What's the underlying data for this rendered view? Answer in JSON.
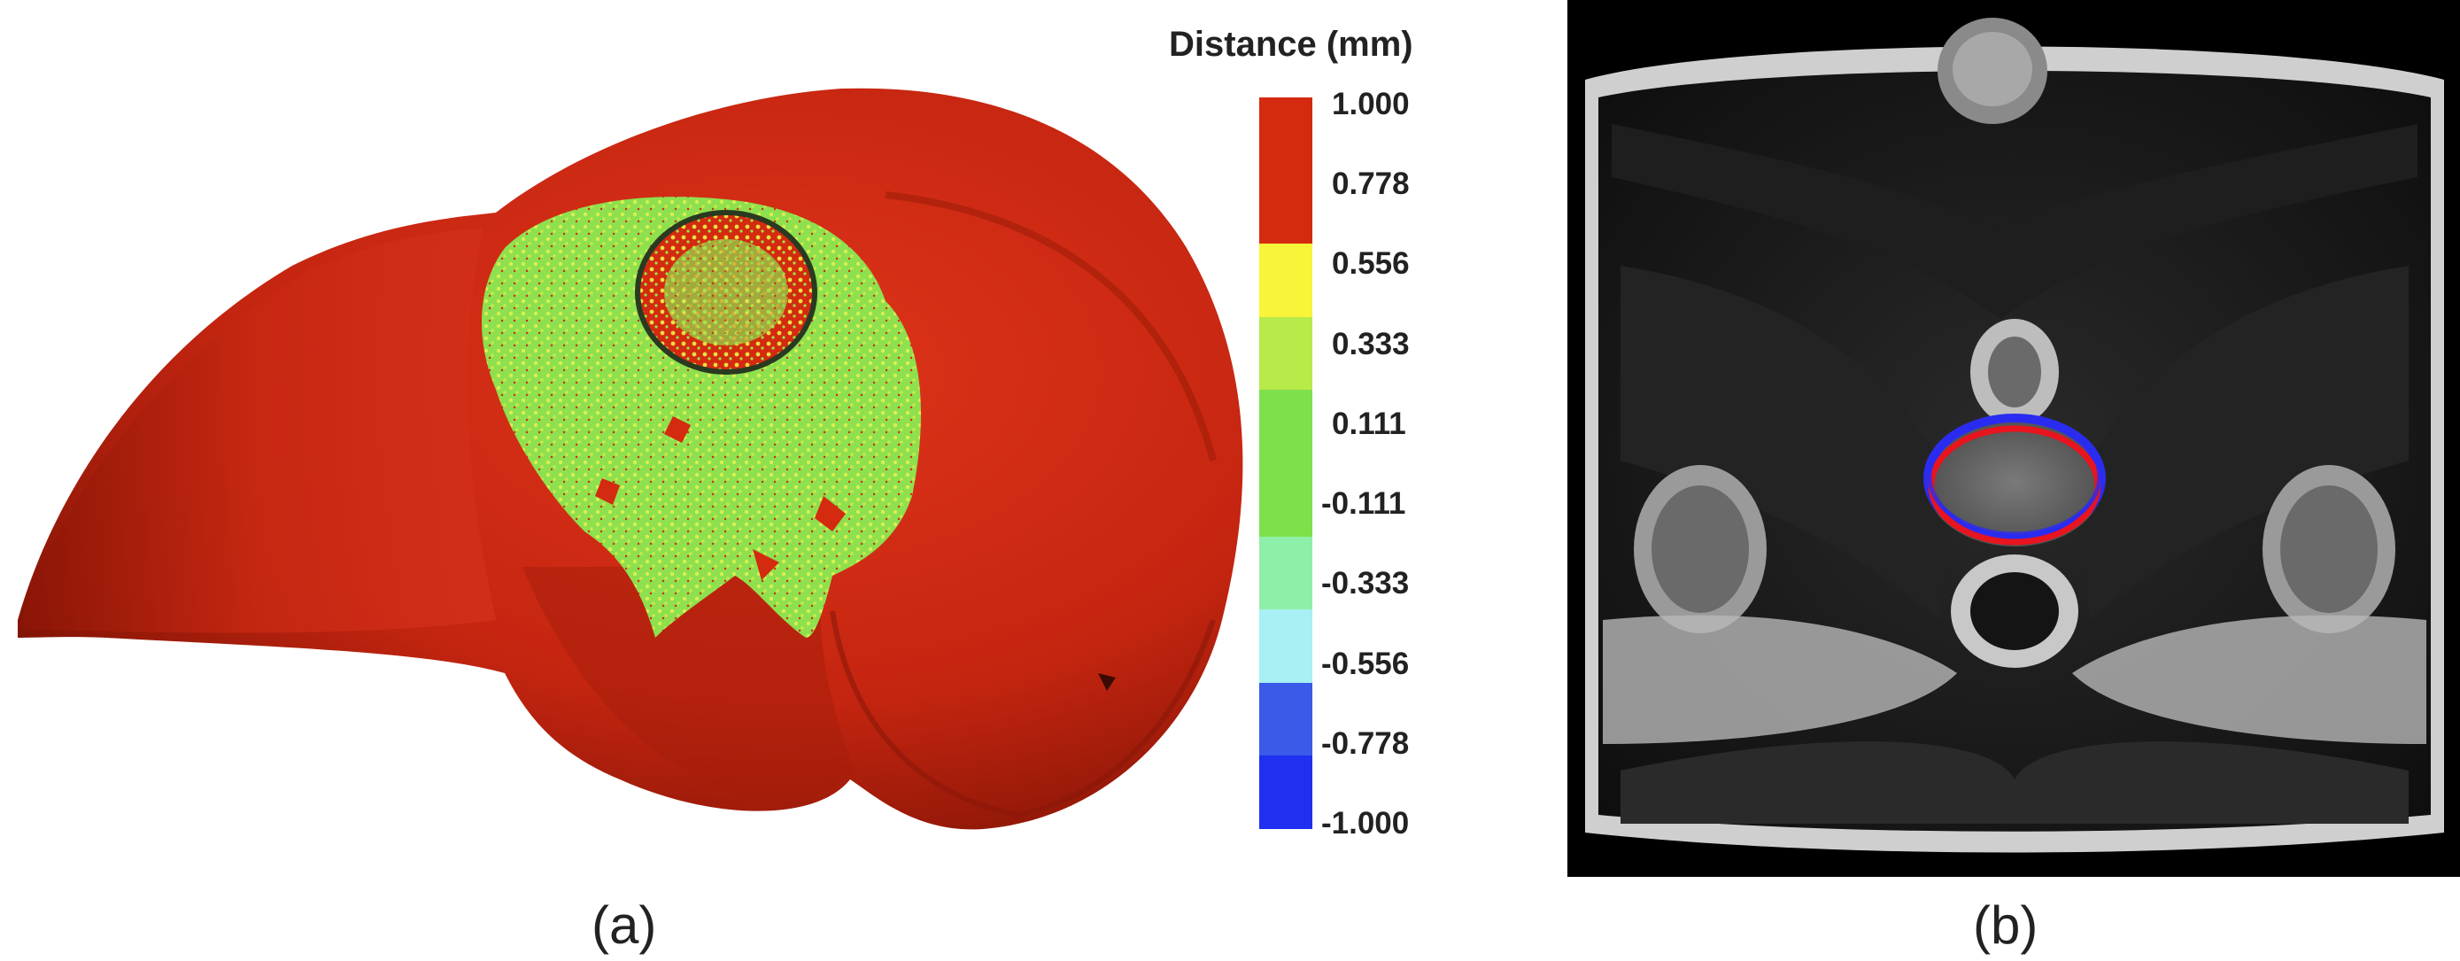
{
  "panel_a": {
    "caption": "(a)",
    "legend": {
      "title": "Distance (mm)",
      "ticks": [
        "1.000",
        "0.778",
        "0.556",
        "0.333",
        "0.111",
        "-0.111",
        "-0.333",
        "-0.556",
        "-0.778",
        "-1.000"
      ],
      "colors": [
        "#d42a10",
        "#d42a10",
        "#f7f43a",
        "#b8ea4a",
        "#7ee04a",
        "#7ee04a",
        "#8ef0a8",
        "#a8f0f4",
        "#3a5ae8",
        "#2030f0"
      ]
    }
  },
  "panel_b": {
    "caption": "(b)",
    "contour_colors": {
      "outer": "#2a2cf0",
      "inner": "#e8141e"
    }
  }
}
